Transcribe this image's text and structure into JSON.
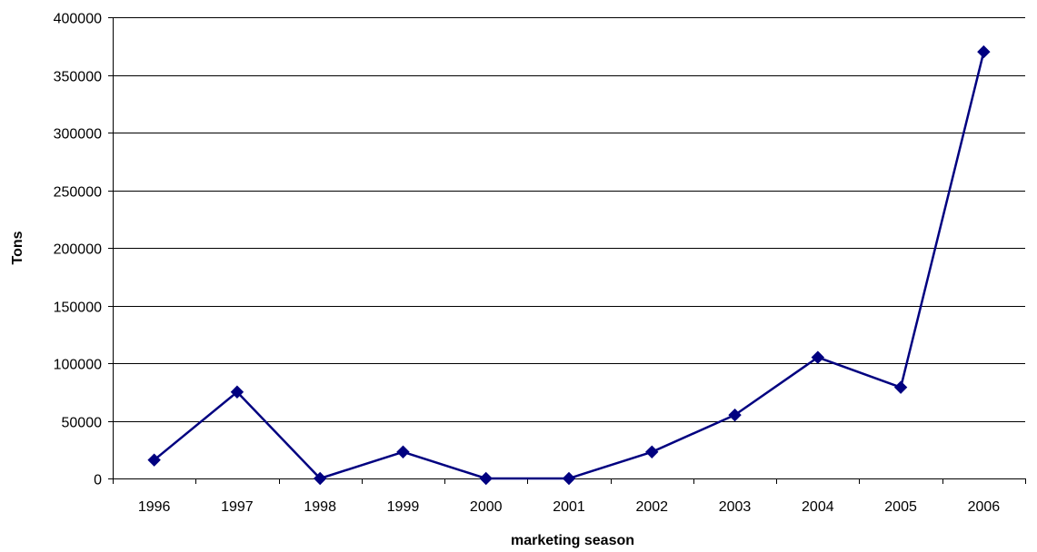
{
  "chart_data": {
    "type": "line",
    "title": "",
    "xlabel": "marketing season",
    "ylabel": "Tons",
    "categories": [
      "1996",
      "1997",
      "1998",
      "1999",
      "2000",
      "2001",
      "2002",
      "2003",
      "2004",
      "2005",
      "2006"
    ],
    "series": [
      {
        "values": [
          16000,
          75000,
          0,
          23000,
          0,
          0,
          23000,
          55000,
          105000,
          79000,
          370000
        ],
        "color": "#000080",
        "marker": "diamond"
      }
    ],
    "ylim": [
      0,
      400000
    ],
    "yticks": [
      0,
      50000,
      100000,
      150000,
      200000,
      250000,
      300000,
      350000,
      400000
    ],
    "grid": "horizontal",
    "legend": "none"
  }
}
